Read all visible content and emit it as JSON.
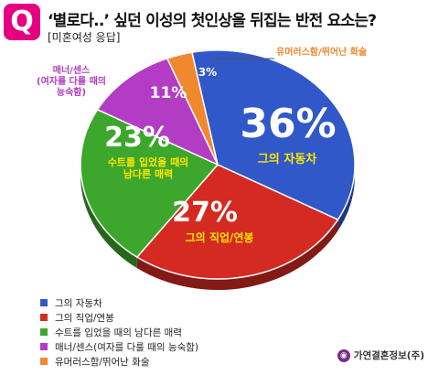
{
  "header": {
    "badge": "Q",
    "title": "‘별로다..’ 싶던 이성의 첫인상을 뒤집는 반전 요소는?",
    "subtitle": "[미혼여성 응답]"
  },
  "chart_data": {
    "type": "pie",
    "title": "‘별로다..’ 싶던 이성의 첫인상을 뒤집는 반전 요소는?",
    "subtitle": "[미혼여성 응답]",
    "unit": "%",
    "slices": [
      {
        "label": "그의 자동차",
        "value": 36,
        "value_label": "36%",
        "color": "#3158c9",
        "inner_label": "그의 자동차",
        "inner_label_color": "#ffe600"
      },
      {
        "label": "그의 직업/연봉",
        "value": 27,
        "value_label": "27%",
        "color": "#d42a22",
        "inner_label": "그의 직업/연봉",
        "inner_label_color": "#ffe600"
      },
      {
        "label": "수트를 입었을 때의 남다른 매력",
        "value": 23,
        "value_label": "23%",
        "color": "#3da62c",
        "inner_label": "수트를 입었을 때의\n남다른 매력",
        "inner_label_color": "#ffe600"
      },
      {
        "label": "매너/센스(여자를 다룰 때의 능숙함)",
        "value": 11,
        "value_label": "11%",
        "color": "#b23cc4",
        "outer_label": "매너/센스\n(여자를 다룰 때의\n능숙함)",
        "outer_label_color": "#b23cc4"
      },
      {
        "label": "유머러스함/뛰어난 화술",
        "value": 3,
        "value_label": "3%",
        "color": "#f0882e",
        "outer_label": "유머러스함/뛰어난 화술",
        "outer_label_color": "#f0882e"
      }
    ],
    "legend_position": "bottom-left"
  },
  "legend": [
    {
      "label": "그의 자동차",
      "color": "#3158c9"
    },
    {
      "label": "그의 직업/연봉",
      "color": "#d42a22"
    },
    {
      "label": "수트를 입었을 때의 남다른 매력",
      "color": "#3da62c"
    },
    {
      "label": "매너/센스(여자를 다룰 때의 능숙함)",
      "color": "#b23cc4"
    },
    {
      "label": "유머러스함/뛰어난 화술",
      "color": "#f0882e"
    }
  ],
  "source": {
    "icon": "logo-icon",
    "text": "가연결혼정보(주)"
  }
}
